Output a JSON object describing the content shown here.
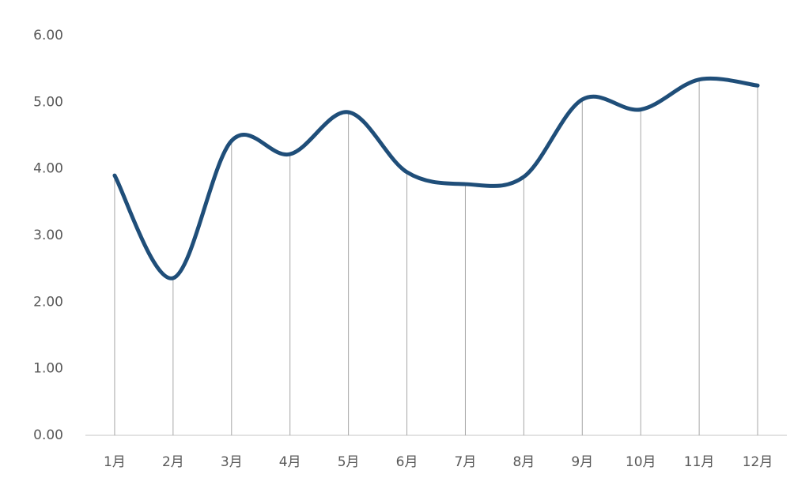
{
  "chart_data": {
    "type": "line",
    "categories": [
      "1月",
      "2月",
      "3月",
      "4月",
      "5月",
      "6月",
      "7月",
      "8月",
      "9月",
      "10月",
      "11月",
      "12月"
    ],
    "series": [
      {
        "color": "#1f4e79",
        "values": [
          3.9,
          2.36,
          4.42,
          4.22,
          4.85,
          3.95,
          3.77,
          3.88,
          5.04,
          4.89,
          5.34,
          5.25
        ]
      }
    ],
    "ylim": [
      0,
      6
    ],
    "yticks": [
      {
        "value": 0,
        "label": "0.00"
      },
      {
        "value": 1,
        "label": "1.00"
      },
      {
        "value": 2,
        "label": "2.00"
      },
      {
        "value": 3,
        "label": "3.00"
      },
      {
        "value": 4,
        "label": "4.00"
      },
      {
        "value": 5,
        "label": "5.00"
      },
      {
        "value": 6,
        "label": "6.00"
      }
    ],
    "smooth": true,
    "drop_lines": true,
    "grid": false
  }
}
